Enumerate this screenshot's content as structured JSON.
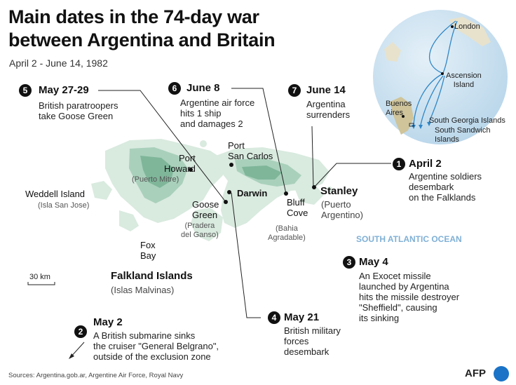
{
  "header": {
    "title_line1": "Main dates in the 74-day war",
    "title_line2": "between Argentina and Britain",
    "subtitle": "April 2 - June 14, 1982"
  },
  "events": [
    {
      "num": "1",
      "date": "April 2",
      "desc": "Argentine soldiers\ndesembark\non the Falklands"
    },
    {
      "num": "2",
      "date": "May 2",
      "desc": "A British submarine sinks\nthe cruiser \"General Belgrano\",\noutside of the exclusion zone"
    },
    {
      "num": "3",
      "date": "May 4",
      "desc": "An Exocet missile\nlaunched by Argentina\nhits the missile destroyer\n\"Sheffield\", causing\nits sinking"
    },
    {
      "num": "4",
      "date": "May 21",
      "desc": "British military\nforces\ndesembark"
    },
    {
      "num": "5",
      "date": "May 27-29",
      "desc": "British paratroopers\ntake Goose Green"
    },
    {
      "num": "6",
      "date": "June 8",
      "desc": "Argentine air force\nhits 1 ship\nand damages 2"
    },
    {
      "num": "7",
      "date": "June 14",
      "desc": "Argentina\nsurrenders"
    }
  ],
  "places": {
    "port_howard": "Port\nHoward",
    "port_howard_sub": "(Puerto Mitre)",
    "weddell": "Weddell Island",
    "weddell_sub": "(Isla San Jose)",
    "port_san_carlos": "Port\nSan Carlos",
    "darwin": "Darwin",
    "goose_green": "Goose\nGreen",
    "goose_green_sub": "(Pradera\ndel Ganso)",
    "bluff_cove": "Bluff\nCove",
    "bluff_cove_sub": "(Bahia\nAgradable)",
    "stanley": "Stanley",
    "stanley_sub": "(Puerto\nArgentino)",
    "fox_bay": "Fox\nBay",
    "falklands": "Falkland Islands",
    "falklands_sub": "(Islas Malvinas)",
    "ocean": "SOUTH ATLANTIC OCEAN",
    "scale": "30 km"
  },
  "globe": {
    "london": "London",
    "ascension": "Ascension\nIsland",
    "buenos_aires": "Buenos\nAires",
    "south_georgia": "South Georgia Islands",
    "south_sandwich": "South Sandwich Islands"
  },
  "footer": {
    "sources": "Sources: Argentina.gob.ar, Argentine Air Force, Royal Navy",
    "agency": "AFP"
  },
  "colors": {
    "land": "#d6e8de",
    "hills": "#8fbfa6",
    "ocean_globe": "#c9e1f1",
    "route": "#2f86c6",
    "marker": "#111111"
  }
}
